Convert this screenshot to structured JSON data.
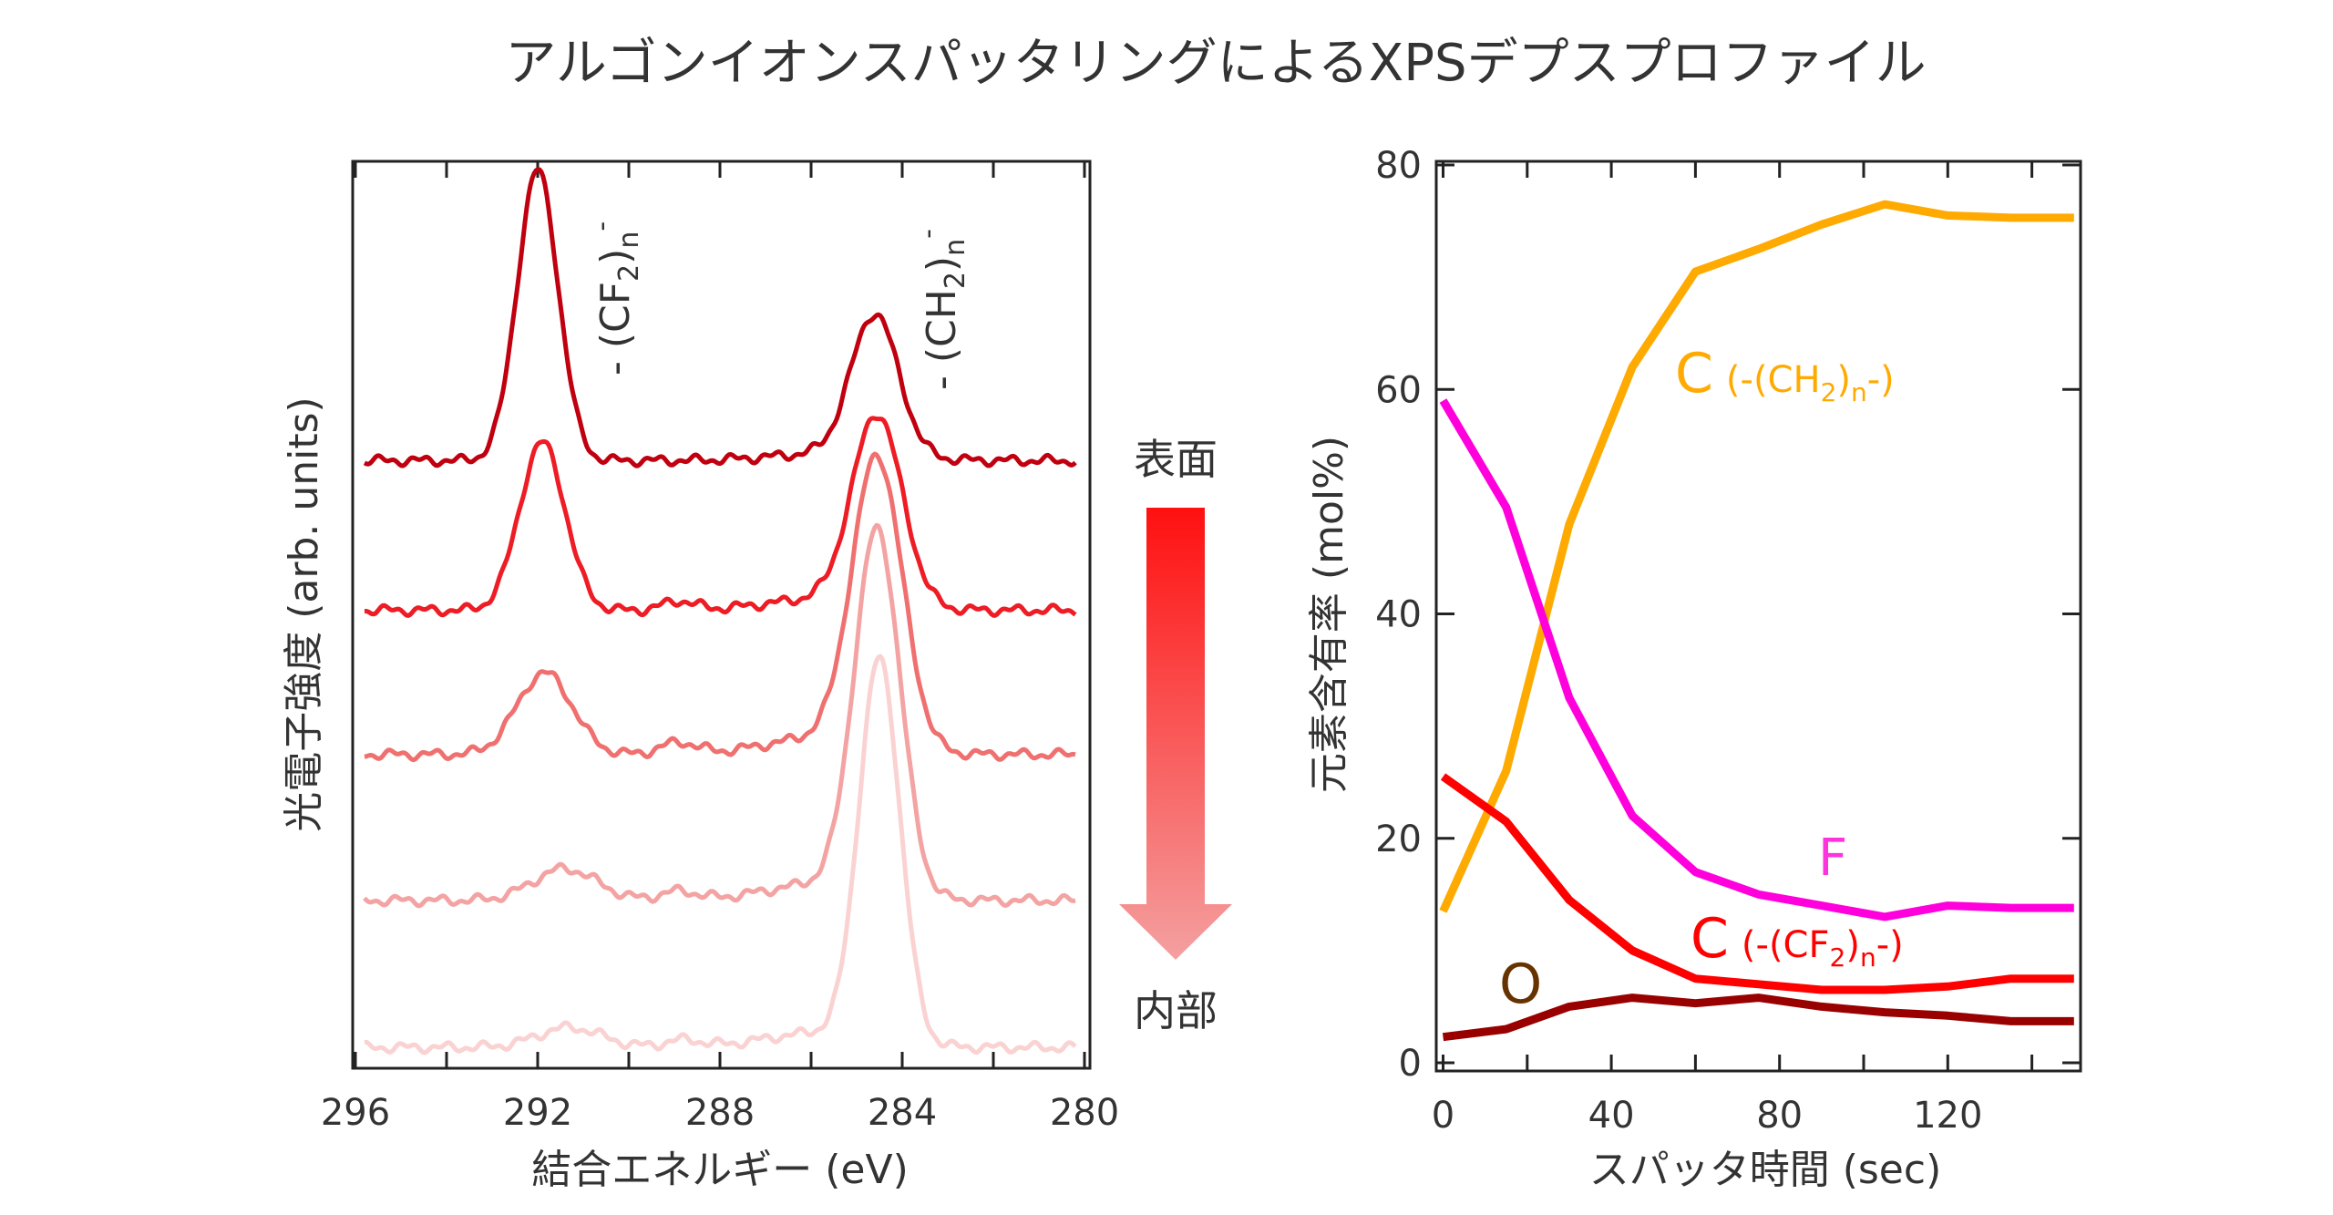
{
  "title": "アルゴンイオンスパッタリングによるXPSデプスプロファイル",
  "chart_data": [
    {
      "type": "line",
      "xlabel": "結合エネルギー (eV)",
      "ylabel": "光電子強度 (arb. units)",
      "xlim": [
        296,
        280
      ],
      "x_reversed": true,
      "xticks": [
        296,
        292,
        288,
        284,
        280
      ],
      "grid": false,
      "annotations": [
        {
          "text_main": "- (CF",
          "sub": "2",
          "close": ")",
          "sub2": "n",
          "sup": "-",
          "x": 291.2
        },
        {
          "text_main": "- (CH",
          "sub": "2",
          "close": ")",
          "sub2": "n",
          "sup": "-",
          "x": 283.7
        }
      ],
      "arrow": {
        "top_label": "表面",
        "bottom_label": "内部",
        "color_top": "#ff1010",
        "color_bottom": "#f4a0a0"
      },
      "x_range_eV": [
        295.8,
        280.2
      ],
      "series": [
        {
          "color": "#c0000f",
          "baseline": 67,
          "peaks": [
            {
              "center": 292.0,
              "height": 32,
              "sigma": 0.45
            },
            {
              "center": 284.6,
              "height": 15.6,
              "sigma": 0.52
            },
            {
              "center": 285.5,
              "height": 0.8,
              "sigma": 1.3
            }
          ]
        },
        {
          "color": "#ee1c24",
          "baseline": 50.5,
          "peaks": [
            {
              "center": 291.9,
              "height": 18.5,
              "sigma": 0.5
            },
            {
              "center": 284.55,
              "height": 21,
              "sigma": 0.55
            },
            {
              "center": 288.9,
              "height": 1,
              "sigma": 0.35
            },
            {
              "center": 285.8,
              "height": 1.2,
              "sigma": 1.2
            }
          ]
        },
        {
          "color": "#f07070",
          "baseline": 34.6,
          "peaks": [
            {
              "center": 291.85,
              "height": 9,
              "sigma": 0.6
            },
            {
              "center": 284.55,
              "height": 32,
              "sigma": 0.55
            },
            {
              "center": 288.9,
              "height": 1.3,
              "sigma": 0.4
            },
            {
              "center": 285.8,
              "height": 1.8,
              "sigma": 1.2
            }
          ]
        },
        {
          "color": "#f4a3a3",
          "baseline": 18.5,
          "peaks": [
            {
              "center": 291.4,
              "height": 3.5,
              "sigma": 0.7
            },
            {
              "center": 284.55,
              "height": 40,
              "sigma": 0.5
            },
            {
              "center": 288.9,
              "height": 1,
              "sigma": 0.4
            },
            {
              "center": 285.8,
              "height": 1.8,
              "sigma": 1.2
            }
          ]
        },
        {
          "color": "#fad2d2",
          "baseline": 2.3,
          "peaks": [
            {
              "center": 291.3,
              "height": 2.2,
              "sigma": 0.7
            },
            {
              "center": 284.5,
              "height": 42,
              "sigma": 0.45
            },
            {
              "center": 288.8,
              "height": 0.8,
              "sigma": 0.4
            },
            {
              "center": 285.8,
              "height": 1.6,
              "sigma": 1.2
            }
          ]
        }
      ]
    },
    {
      "type": "line",
      "xlabel": "スパッタ時間 (sec)",
      "ylabel": "元素含有率 (mol%)",
      "xlim": [
        0,
        150
      ],
      "ylim": [
        0,
        80
      ],
      "xticks": [
        0,
        40,
        80,
        120
      ],
      "yticks": [
        0,
        20,
        40,
        60,
        80
      ],
      "grid": false,
      "x": [
        0,
        15,
        30,
        45,
        60,
        75,
        90,
        105,
        120,
        135,
        150
      ],
      "series": [
        {
          "name": "C (-(CH2)n-)",
          "label_main": "C",
          "label_paren": "(-(CH",
          "label_sub": "2",
          "label_close": ")",
          "label_sub2": "n",
          "label_end": "-)",
          "color": "#ffaa00",
          "values": [
            13.5,
            26,
            48,
            62,
            70.5,
            72.5,
            74.7,
            76.5,
            75.5,
            75.3,
            75.3
          ]
        },
        {
          "name": "F",
          "label_main": "F",
          "color": "#ff00dd",
          "values": [
            59,
            49.5,
            32.5,
            22,
            17,
            15,
            14,
            13,
            14,
            13.8,
            13.8
          ]
        },
        {
          "name": "C (-(CF2)n-)",
          "label_main": "C",
          "label_paren": "(-(CF",
          "label_sub": "2",
          "label_close": ")",
          "label_sub2": "n",
          "label_end": "-)",
          "color": "#ff0000",
          "values": [
            25.5,
            21.5,
            14.5,
            10,
            7.5,
            7,
            6.5,
            6.5,
            6.8,
            7.5,
            7.5
          ]
        },
        {
          "name": "O",
          "label_main": "O",
          "color": "#990000",
          "values": [
            2.3,
            3,
            5,
            5.8,
            5.3,
            5.8,
            5,
            4.5,
            4.2,
            3.7,
            3.7
          ]
        }
      ]
    }
  ]
}
